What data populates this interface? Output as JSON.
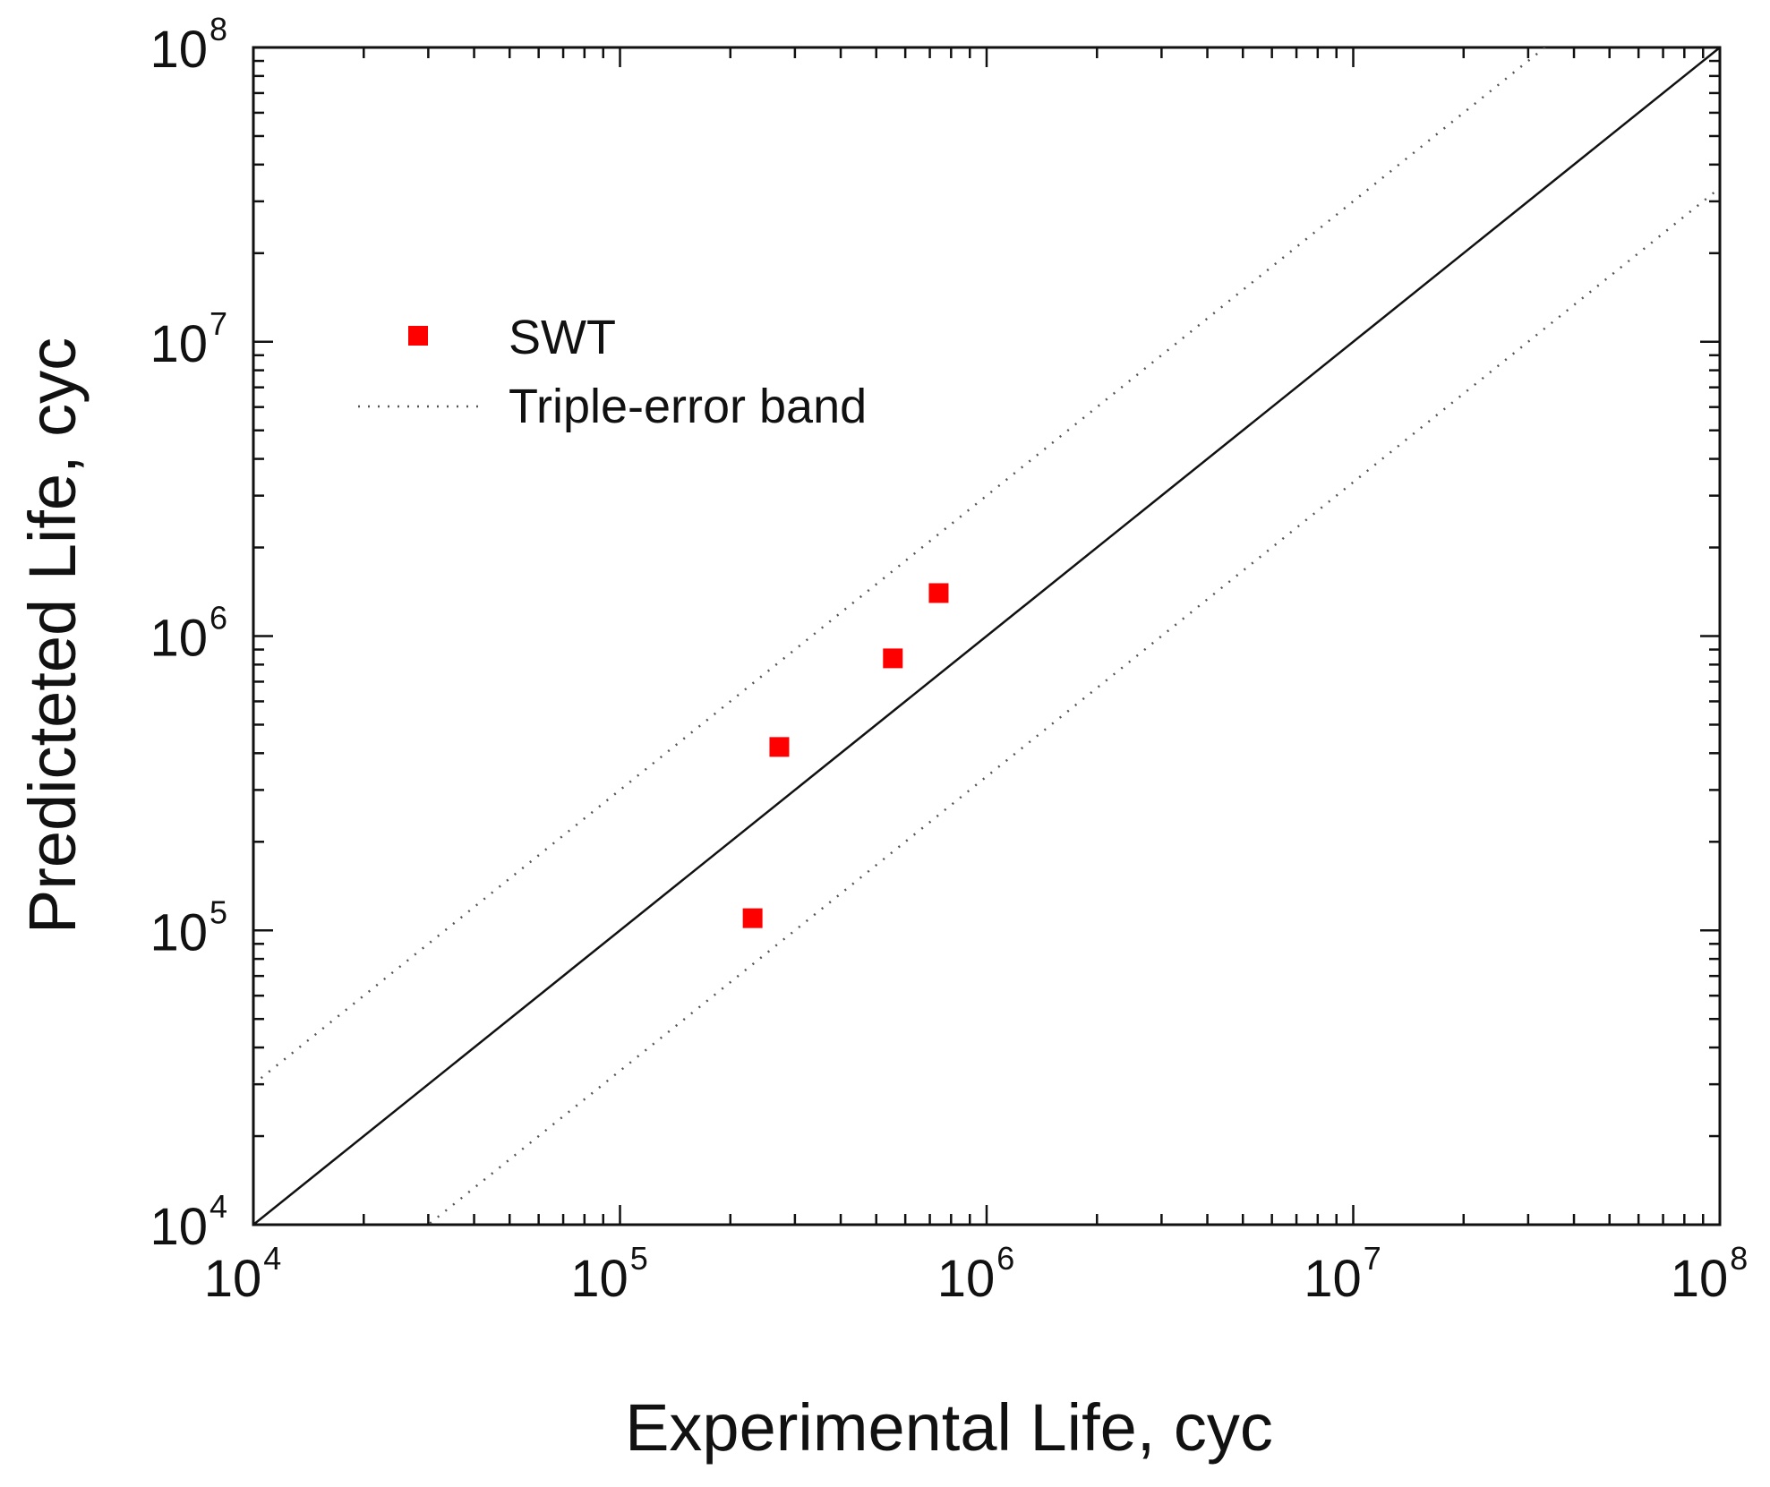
{
  "chart_data": {
    "type": "scatter",
    "title": "",
    "xlabel": "Experimental Life, cyc",
    "ylabel": "Predicteted Life, cyc",
    "xscale": "log",
    "yscale": "log",
    "xlim": [
      10000,
      100000000
    ],
    "ylim": [
      10000,
      100000000
    ],
    "grid": false,
    "legend_position": "upper-left",
    "ticks": [
      {
        "value": 10000,
        "base": "10",
        "exp": "4"
      },
      {
        "value": 100000,
        "base": "10",
        "exp": "5"
      },
      {
        "value": 1000000,
        "base": "10",
        "exp": "6"
      },
      {
        "value": 10000000,
        "base": "10",
        "exp": "7"
      },
      {
        "value": 100000000,
        "base": "10",
        "exp": "8"
      }
    ],
    "series": [
      {
        "name": "SWT",
        "kind": "scatter",
        "marker": "square",
        "color": "#ff0000",
        "x": [
          230000,
          272000,
          555000,
          740000
        ],
        "y": [
          110000,
          420000,
          840000,
          1400000
        ]
      }
    ],
    "reference_lines": [
      {
        "name": "1:1 line",
        "style": "solid",
        "color": "#111111",
        "factor": 1,
        "in_legend": false
      },
      {
        "name": "Triple-error band",
        "style": "dotted",
        "color": "#555555",
        "factor": 3,
        "in_legend": true
      },
      {
        "name": "Triple-error band (lower)",
        "style": "dotted",
        "color": "#555555",
        "factor": 0.3333333,
        "in_legend": false
      }
    ],
    "legend": [
      {
        "label": "SWT",
        "marker": "square",
        "color": "#ff0000"
      },
      {
        "label": "Triple-error band",
        "marker": "dotted-line",
        "color": "#555555"
      }
    ]
  }
}
